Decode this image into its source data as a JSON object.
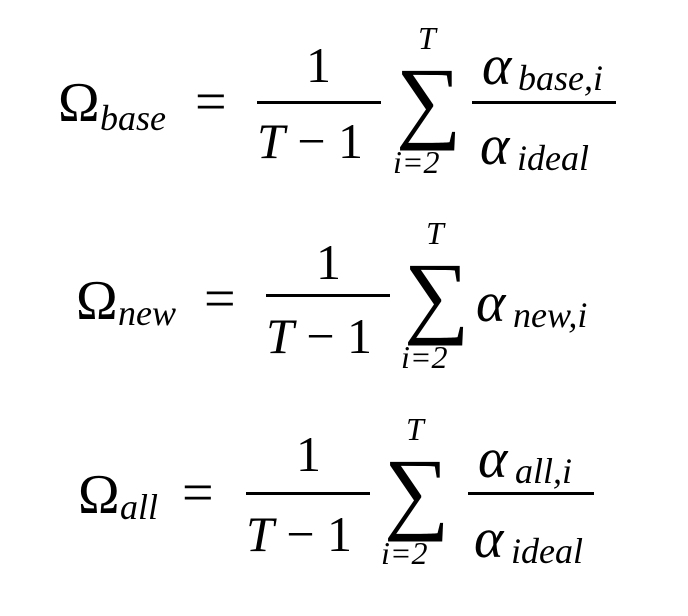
{
  "equations": [
    {
      "lhs_symbol": "Ω",
      "lhs_subscript": "base",
      "equals": "=",
      "fraction": {
        "numerator": "1",
        "denominator_T": "T",
        "denominator_rest": " − 1"
      },
      "sum": {
        "symbol": "∑",
        "upper": "T",
        "lower": "i=2"
      },
      "term": {
        "type": "fraction",
        "numerator_symbol": "α",
        "numerator_subscript": "base,i",
        "denominator_symbol": "α",
        "denominator_subscript": "ideal"
      }
    },
    {
      "lhs_symbol": "Ω",
      "lhs_subscript": "new",
      "equals": "=",
      "fraction": {
        "numerator": "1",
        "denominator_T": "T",
        "denominator_rest": " − 1"
      },
      "sum": {
        "symbol": "∑",
        "upper": "T",
        "lower": "i=2"
      },
      "term": {
        "type": "single",
        "symbol": "α",
        "subscript": "new,i"
      }
    },
    {
      "lhs_symbol": "Ω",
      "lhs_subscript": "all",
      "equals": "=",
      "fraction": {
        "numerator": "1",
        "denominator_T": "T",
        "denominator_rest": " − 1"
      },
      "sum": {
        "symbol": "∑",
        "upper": "T",
        "lower": "i=2"
      },
      "term": {
        "type": "fraction",
        "numerator_symbol": "α",
        "numerator_subscript": "all,i",
        "denominator_symbol": "α",
        "denominator_subscript": "ideal"
      }
    }
  ]
}
